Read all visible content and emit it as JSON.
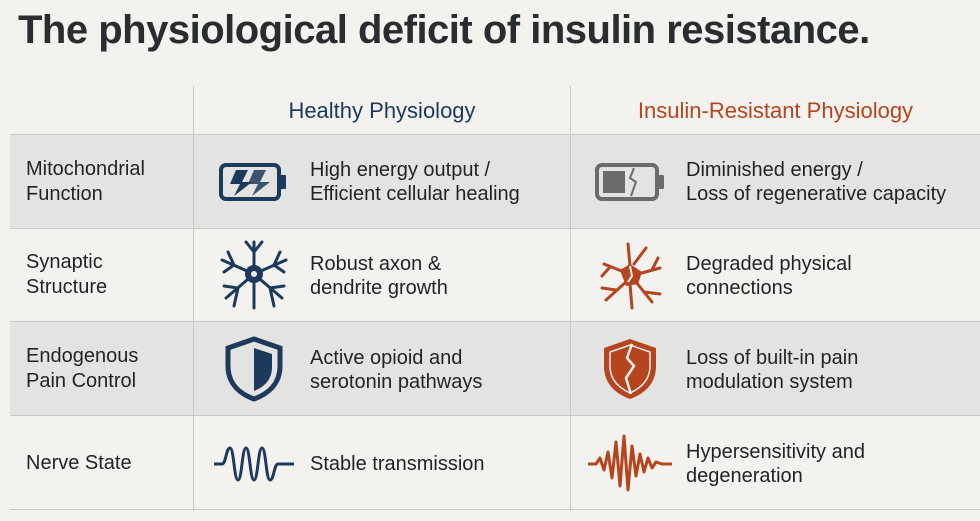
{
  "title": "The physiological deficit of insulin resistance.",
  "columns": {
    "healthy": {
      "label": "Healthy Physiology",
      "color": "#1b3a5c"
    },
    "resistant": {
      "label": "Insulin-Resistant Physiology",
      "color": "#b5441f"
    }
  },
  "rows": [
    {
      "label": "Mitochondrial\nFunction",
      "healthy": {
        "icon": "charging-battery-icon",
        "text": "High energy output /\nEfficient cellular healing"
      },
      "resistant": {
        "icon": "broken-battery-icon",
        "text": "Diminished energy /\nLoss of regenerative capacity"
      }
    },
    {
      "label": "Synaptic\nStructure",
      "healthy": {
        "icon": "neuron-icon",
        "text": "Robust axon &\ndendrite growth"
      },
      "resistant": {
        "icon": "damaged-neuron-icon",
        "text": "Degraded physical\nconnections"
      }
    },
    {
      "label": "Endogenous\nPain Control",
      "healthy": {
        "icon": "shield-icon",
        "text": "Active opioid and\nserotonin pathways"
      },
      "resistant": {
        "icon": "cracked-shield-icon",
        "text": "Loss of built-in pain\nmodulation system"
      }
    },
    {
      "label": "Nerve State",
      "healthy": {
        "icon": "smooth-wave-icon",
        "text": "Stable transmission"
      },
      "resistant": {
        "icon": "erratic-wave-icon",
        "text": "Hypersensitivity and\ndegeneration"
      }
    }
  ]
}
